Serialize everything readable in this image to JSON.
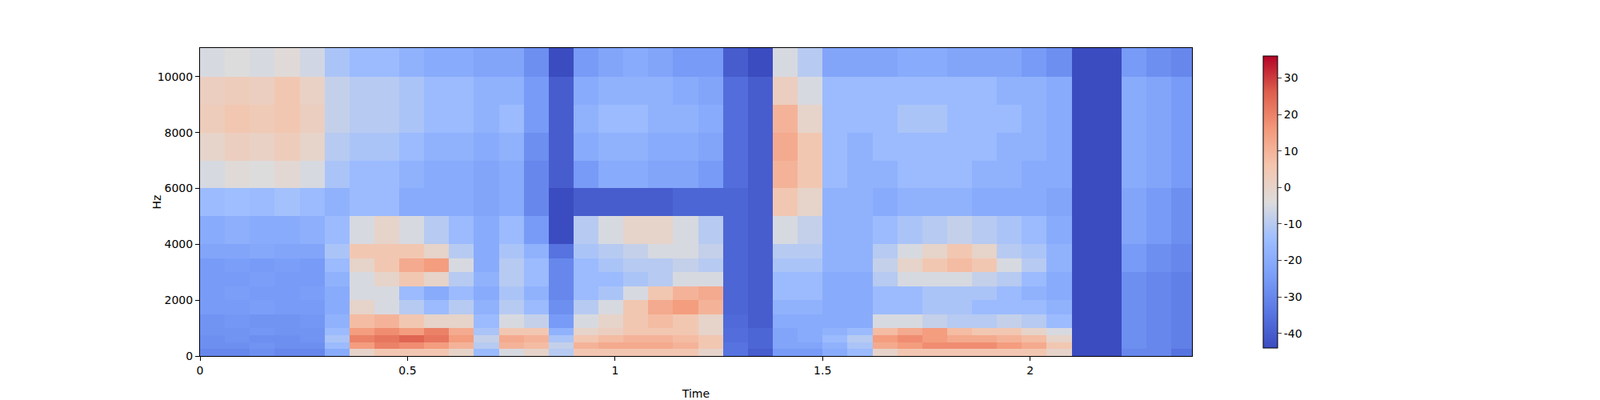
{
  "chart_data": {
    "type": "heatmap",
    "x_label": "Time",
    "y_label": "Hz",
    "xlim": [
      0,
      2.39
    ],
    "xticks": [
      0,
      0.5,
      1,
      1.5,
      2
    ],
    "ylim": [
      0,
      11025
    ],
    "yticks": [
      0,
      2000,
      4000,
      6000,
      8000,
      10000
    ],
    "zlim": [
      -44,
      36
    ],
    "zticks": [
      -40,
      -30,
      -20,
      -10,
      0,
      10,
      20,
      30
    ],
    "time_bins": [
      0,
      0.06,
      0.12,
      0.18,
      0.24,
      0.3,
      0.36,
      0.42,
      0.48,
      0.54,
      0.6,
      0.66,
      0.72,
      0.78,
      0.84,
      0.9,
      0.96,
      1.02,
      1.08,
      1.14,
      1.2,
      1.26,
      1.32,
      1.38,
      1.44,
      1.5,
      1.56,
      1.62,
      1.68,
      1.74,
      1.8,
      1.86,
      1.92,
      1.98,
      2.04,
      2.1,
      2.16,
      2.22,
      2.28,
      2.34,
      2.4
    ],
    "freq_bins": [
      0,
      250,
      500,
      750,
      1000,
      1500,
      2000,
      2500,
      3000,
      3500,
      4000,
      5000,
      6000,
      7000,
      8000,
      9000,
      10000,
      11025
    ],
    "z": [
      [
        -30,
        -30,
        -28,
        -30,
        -30,
        -20,
        0,
        5,
        5,
        5,
        0,
        -15,
        -5,
        0,
        -10,
        5,
        5,
        5,
        5,
        5,
        0,
        -35,
        -40,
        -25,
        -25,
        -20,
        -15,
        0,
        5,
        5,
        5,
        5,
        5,
        5,
        0,
        -44,
        -44,
        -30,
        -30,
        -35
      ],
      [
        -28,
        -28,
        -27,
        -28,
        -28,
        -15,
        15,
        20,
        18,
        15,
        10,
        -10,
        10,
        8,
        -8,
        10,
        12,
        12,
        12,
        10,
        5,
        -35,
        -38,
        -22,
        -22,
        -18,
        -12,
        12,
        15,
        18,
        18,
        18,
        15,
        12,
        5,
        -44,
        -44,
        -28,
        -30,
        -32
      ],
      [
        -28,
        -27,
        -28,
        -28,
        -27,
        -12,
        20,
        22,
        25,
        22,
        15,
        -8,
        12,
        10,
        -12,
        5,
        8,
        10,
        10,
        8,
        5,
        -36,
        -38,
        -22,
        -20,
        -15,
        -10,
        15,
        18,
        15,
        12,
        12,
        10,
        8,
        0,
        -44,
        -44,
        -28,
        -30,
        -32
      ],
      [
        -27,
        -27,
        -26,
        -27,
        -27,
        -15,
        15,
        18,
        15,
        20,
        12,
        -12,
        5,
        5,
        -18,
        0,
        2,
        5,
        5,
        5,
        0,
        -36,
        -38,
        -22,
        -20,
        -18,
        -15,
        8,
        12,
        15,
        8,
        5,
        5,
        0,
        -5,
        -44,
        -44,
        -28,
        -30,
        -32
      ],
      [
        -27,
        -26,
        -27,
        -27,
        -26,
        -18,
        8,
        10,
        5,
        0,
        0,
        -15,
        -5,
        -8,
        -25,
        -5,
        0,
        5,
        8,
        5,
        0,
        -37,
        -40,
        -20,
        -20,
        -20,
        -20,
        -5,
        -5,
        -8,
        -10,
        -10,
        -8,
        -10,
        -15,
        -44,
        -44,
        -28,
        -30,
        -32
      ],
      [
        -25,
        -25,
        -24,
        -25,
        -25,
        -20,
        0,
        -5,
        -10,
        -15,
        -10,
        -18,
        -10,
        -15,
        -28,
        -10,
        -5,
        5,
        12,
        15,
        10,
        -38,
        -40,
        -18,
        -18,
        -20,
        -20,
        -15,
        -15,
        -12,
        -12,
        -15,
        -15,
        -15,
        -18,
        -44,
        -44,
        -28,
        -30,
        -32
      ],
      [
        -25,
        -24,
        -25,
        -25,
        -24,
        -20,
        -5,
        -5,
        -15,
        -20,
        -15,
        -20,
        -12,
        -18,
        -30,
        -15,
        -12,
        -5,
        5,
        10,
        12,
        -38,
        -40,
        -15,
        -15,
        -20,
        -20,
        -15,
        -15,
        -12,
        -12,
        -12,
        -15,
        -18,
        -20,
        -44,
        -44,
        -28,
        -30,
        -32
      ],
      [
        -25,
        -25,
        -24,
        -25,
        -25,
        -18,
        -5,
        0,
        5,
        0,
        -10,
        -18,
        -10,
        -15,
        -30,
        -15,
        -15,
        -12,
        -10,
        -5,
        -5,
        -38,
        -40,
        -15,
        -15,
        -20,
        -20,
        -10,
        -5,
        -5,
        -5,
        -8,
        -10,
        -15,
        -20,
        -44,
        -44,
        -28,
        -30,
        -32
      ],
      [
        -25,
        -24,
        -25,
        -24,
        -25,
        -15,
        0,
        5,
        12,
        15,
        -5,
        -20,
        -10,
        -15,
        -30,
        -15,
        -12,
        -10,
        -10,
        -8,
        -10,
        -38,
        -40,
        -12,
        -12,
        -18,
        -18,
        -8,
        0,
        5,
        8,
        5,
        -5,
        -10,
        -18,
        -44,
        -44,
        -25,
        -28,
        -30
      ],
      [
        -22,
        -22,
        -21,
        -22,
        -22,
        -12,
        5,
        5,
        5,
        0,
        -10,
        -20,
        -12,
        -18,
        -35,
        -12,
        -10,
        -8,
        -5,
        -5,
        -8,
        -38,
        -40,
        -10,
        -10,
        -18,
        -18,
        -10,
        -5,
        0,
        5,
        0,
        -10,
        -12,
        -18,
        -44,
        -44,
        -25,
        -28,
        -30
      ],
      [
        -20,
        -19,
        -20,
        -20,
        -19,
        -15,
        -5,
        0,
        -5,
        -10,
        -15,
        -20,
        -15,
        -25,
        -44,
        -10,
        -5,
        0,
        0,
        -5,
        -10,
        -38,
        -40,
        -5,
        -8,
        -18,
        -18,
        -15,
        -12,
        -10,
        -8,
        -10,
        -12,
        -15,
        -20,
        -44,
        -44,
        -22,
        -25,
        -28
      ],
      [
        -15,
        -14,
        -15,
        -13,
        -15,
        -18,
        -15,
        -15,
        -20,
        -20,
        -20,
        -22,
        -20,
        -30,
        -44,
        -40,
        -40,
        -40,
        -40,
        -38,
        -38,
        -38,
        -40,
        5,
        0,
        -18,
        -18,
        -20,
        -18,
        -18,
        -18,
        -20,
        -20,
        -20,
        -22,
        -44,
        -44,
        -22,
        -25,
        -28
      ],
      [
        -5,
        -3,
        -4,
        -2,
        -5,
        -12,
        -15,
        -15,
        -18,
        -20,
        -20,
        -22,
        -20,
        -30,
        -40,
        -25,
        -20,
        -20,
        -22,
        -22,
        -25,
        -36,
        -40,
        10,
        5,
        -15,
        -18,
        -18,
        -15,
        -15,
        -15,
        -18,
        -18,
        -20,
        -20,
        -44,
        -44,
        -20,
        -22,
        -25
      ],
      [
        0,
        2,
        1,
        3,
        0,
        -10,
        -12,
        -12,
        -15,
        -18,
        -18,
        -20,
        -18,
        -28,
        -40,
        -20,
        -18,
        -18,
        -20,
        -20,
        -22,
        -36,
        -40,
        12,
        5,
        -15,
        -18,
        -15,
        -15,
        -15,
        -15,
        -15,
        -18,
        -18,
        -20,
        -44,
        -44,
        -20,
        -22,
        -25
      ],
      [
        3,
        5,
        4,
        5,
        2,
        -8,
        -10,
        -10,
        -12,
        -15,
        -15,
        -18,
        -15,
        -25,
        -40,
        -18,
        -15,
        -15,
        -18,
        -18,
        -20,
        -36,
        -40,
        10,
        0,
        -15,
        -15,
        -15,
        -12,
        -12,
        -15,
        -15,
        -15,
        -18,
        -20,
        -44,
        -44,
        -20,
        -22,
        -25
      ],
      [
        2,
        3,
        2,
        5,
        1,
        -8,
        -10,
        -10,
        -12,
        -15,
        -15,
        -18,
        -18,
        -25,
        -40,
        -20,
        -18,
        -18,
        -18,
        -20,
        -22,
        -36,
        -40,
        2,
        -5,
        -15,
        -15,
        -15,
        -15,
        -15,
        -15,
        -15,
        -18,
        -18,
        -20,
        -44,
        -44,
        -20,
        -22,
        -25
      ],
      [
        -5,
        -4,
        -5,
        -3,
        -6,
        -12,
        -15,
        -15,
        -18,
        -20,
        -20,
        -22,
        -22,
        -28,
        -44,
        -25,
        -22,
        -20,
        -22,
        -25,
        -25,
        -40,
        -44,
        -5,
        -10,
        -22,
        -22,
        -22,
        -20,
        -20,
        -22,
        -22,
        -22,
        -25,
        -28,
        -44,
        -44,
        -25,
        -28,
        -30
      ]
    ]
  }
}
